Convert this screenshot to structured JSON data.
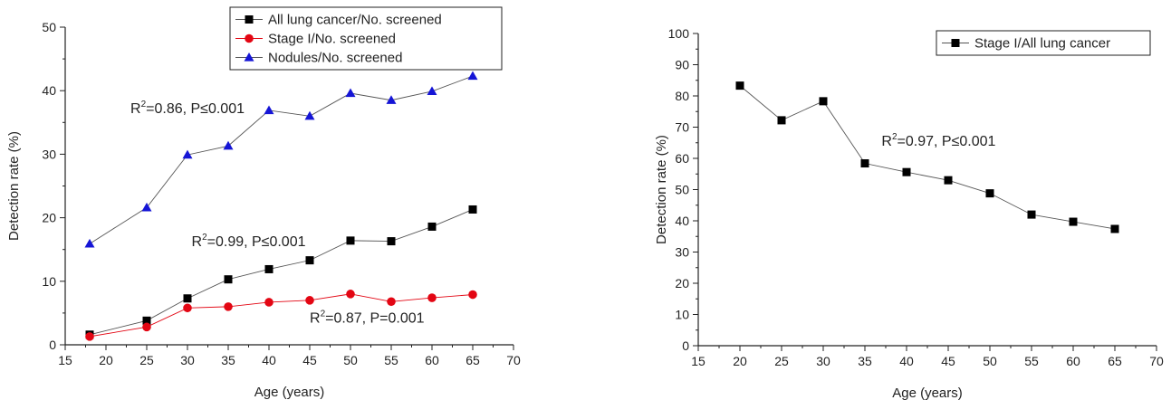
{
  "chart_data": [
    {
      "type": "line",
      "xlabel": "Age (years)",
      "ylabel": "Detection rate (%)",
      "xlim": [
        15,
        70
      ],
      "ylim": [
        0,
        50
      ],
      "x_ticks": [
        "15",
        "20",
        "25",
        "30",
        "35",
        "40",
        "45",
        "50",
        "55",
        "60",
        "65",
        "70"
      ],
      "y_ticks": [
        "0",
        "10",
        "20",
        "30",
        "40",
        "50"
      ],
      "grid": false,
      "legend_position": "top-right",
      "series": [
        {
          "name": "All lung cancer/No. screened",
          "marker": "square",
          "color": "#000000",
          "line_color": "#555555",
          "x": [
            18,
            25,
            30,
            35,
            40,
            45,
            50,
            55,
            60,
            65
          ],
          "values": [
            1.6,
            3.8,
            7.3,
            10.3,
            11.9,
            13.3,
            16.4,
            16.3,
            18.6,
            21.3
          ]
        },
        {
          "name": "Stage I/No. screened",
          "marker": "circle",
          "color": "#e30613",
          "line_color": "#e30613",
          "x": [
            18,
            25,
            30,
            35,
            40,
            45,
            50,
            55,
            60,
            65
          ],
          "values": [
            1.3,
            2.8,
            5.8,
            6.0,
            6.7,
            7.0,
            8.0,
            6.8,
            7.4,
            7.9
          ]
        },
        {
          "name": "Nodules/No. screened",
          "marker": "triangle",
          "color": "#1515d6",
          "line_color": "#555555",
          "x": [
            18,
            25,
            30,
            35,
            40,
            45,
            50,
            55,
            60,
            65
          ],
          "values": [
            15.9,
            21.6,
            29.9,
            31.3,
            36.9,
            36.0,
            39.6,
            38.5,
            39.9,
            42.3
          ]
        }
      ],
      "annotations": [
        {
          "id": "nodules",
          "text": "=0.86, P≤0.001",
          "x": 23.0,
          "y": 36.5
        },
        {
          "id": "all",
          "text": "=0.99, P≤0.001",
          "x": 30.5,
          "y": 15.5
        },
        {
          "id": "stage1",
          "text": "=0.87, P=0.001",
          "x": 45.0,
          "y": 3.5
        }
      ]
    },
    {
      "type": "line",
      "xlabel": "Age (years)",
      "ylabel": "Detection rate (%)",
      "xlim": [
        15,
        70
      ],
      "ylim": [
        0,
        100
      ],
      "x_ticks": [
        "15",
        "20",
        "25",
        "30",
        "35",
        "40",
        "45",
        "50",
        "55",
        "60",
        "65",
        "70"
      ],
      "y_ticks": [
        "0",
        "10",
        "20",
        "30",
        "40",
        "50",
        "60",
        "70",
        "80",
        "90",
        "100"
      ],
      "grid": false,
      "legend_position": "top-right",
      "series": [
        {
          "name": "Stage I/All lung cancer",
          "marker": "square",
          "color": "#000000",
          "line_color": "#555555",
          "x": [
            20,
            25,
            30,
            35,
            40,
            45,
            50,
            55,
            60,
            65
          ],
          "values": [
            83.3,
            72.2,
            78.3,
            58.4,
            55.6,
            53.0,
            48.8,
            42.0,
            39.7,
            37.4
          ]
        }
      ],
      "annotations": [
        {
          "id": "stage1-all",
          "text": "=0.97, P≤0.001",
          "x": 37.0,
          "y": 64.0
        }
      ]
    }
  ]
}
